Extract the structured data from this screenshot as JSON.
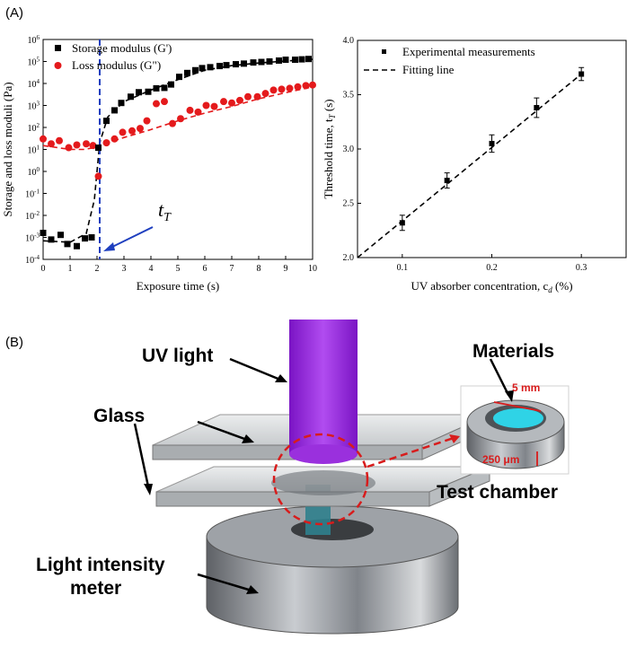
{
  "panels": {
    "a_label": "(A)",
    "b_label": "(B)"
  },
  "chart_data": [
    {
      "type": "scatter",
      "panel": "A-left",
      "xlabel": "Exposure time (s)",
      "ylabel": "Storage and loss moduli (Pa)",
      "xlim": [
        0,
        10
      ],
      "ylim_exponent": [
        -4,
        6
      ],
      "y_scale": "log",
      "x_ticks": [
        "0",
        "1",
        "2",
        "3",
        "4",
        "5",
        "6",
        "7",
        "8",
        "9",
        "10"
      ],
      "y_ticks": [
        "10-4",
        "10-3",
        "10-2",
        "10-1",
        "100",
        "101",
        "102",
        "103",
        "104",
        "105",
        "106"
      ],
      "legend_position": "top-left",
      "annotation": "tT",
      "threshold_time": 2.1,
      "series": [
        {
          "name": "Storage modulus (G')",
          "marker": "square",
          "color": "#000000",
          "x": [
            0.0,
            0.3,
            0.65,
            0.9,
            1.25,
            1.55,
            1.8,
            2.05,
            2.35,
            2.65,
            2.9,
            3.25,
            3.55,
            3.9,
            4.2,
            4.5,
            4.75,
            5.05,
            5.35,
            5.65,
            5.9,
            6.2,
            6.55,
            6.8,
            7.15,
            7.45,
            7.8,
            8.1,
            8.4,
            8.75,
            9.0,
            9.35,
            9.6,
            9.85
          ],
          "y": [
            0.0016,
            0.0008,
            0.0013,
            0.0005,
            0.0004,
            0.0009,
            0.001,
            12,
            200,
            600,
            1300,
            2500,
            4000,
            4200,
            6000,
            6300,
            9000,
            20000,
            30000,
            40000,
            50000,
            55000,
            62000,
            68000,
            75000,
            80000,
            90000,
            95000,
            100000,
            110000,
            120000,
            120000,
            125000,
            130000
          ]
        },
        {
          "name": "Loss modulus (G\")",
          "marker": "circle",
          "color": "#e41a1c",
          "x": [
            0.0,
            0.3,
            0.6,
            0.95,
            1.25,
            1.6,
            1.85,
            2.05,
            2.35,
            2.65,
            2.95,
            3.3,
            3.6,
            3.85,
            4.2,
            4.5,
            4.8,
            5.1,
            5.45,
            5.75,
            6.05,
            6.35,
            6.7,
            7.0,
            7.3,
            7.6,
            7.95,
            8.25,
            8.55,
            8.85,
            9.15,
            9.45,
            9.75,
            10.0
          ],
          "y": [
            30,
            18,
            25,
            12,
            16,
            18,
            15,
            0.6,
            20,
            30,
            60,
            70,
            90,
            200,
            1200,
            1500,
            150,
            250,
            600,
            500,
            1000,
            900,
            1500,
            1300,
            1700,
            2500,
            2500,
            3500,
            5000,
            5500,
            6000,
            7000,
            8000,
            8500
          ]
        }
      ],
      "fit_curves_note": "dashed fits"
    },
    {
      "type": "scatter",
      "panel": "A-right",
      "xlabel": "UV absorber concentration, c",
      "xlabel_sub": "d",
      "xlabel_unit": " (%)",
      "ylabel": "Threshold time,  t",
      "ylabel_sub": "T",
      "ylabel_unit": " (s)",
      "xlim": [
        0.05,
        0.35
      ],
      "ylim": [
        2.0,
        4.0
      ],
      "x_ticks": [
        "0.1",
        "0.2",
        "0.3"
      ],
      "y_ticks": [
        "2.0",
        "2.5",
        "3.0",
        "3.5",
        "4.0"
      ],
      "legend_position": "top-right",
      "series": [
        {
          "name": "Experimental measurements",
          "marker": "square",
          "x": [
            0.1,
            0.15,
            0.2,
            0.25,
            0.3
          ],
          "y": [
            2.32,
            2.71,
            3.05,
            3.38,
            3.69
          ],
          "err": [
            0.07,
            0.07,
            0.08,
            0.09,
            0.06
          ]
        },
        {
          "name": "Fitting line",
          "style": "dashed",
          "x": [
            0.05,
            0.3
          ],
          "y": [
            2.0,
            3.69
          ]
        }
      ]
    }
  ],
  "diagram": {
    "uv_light": "UV light",
    "glass": "Glass",
    "materials": "Materials",
    "test_chamber": "Test chamber",
    "meter_line1": "Light intensity",
    "meter_line2": "meter",
    "dim_diameter": "5 mm",
    "dim_depth": "250 μm",
    "colors": {
      "uv": "#8b1fd6",
      "annotation": "#d81c1c",
      "material": "#2fd3e6",
      "metal": "#8a8f96",
      "glass": "#cfd3d6"
    }
  }
}
